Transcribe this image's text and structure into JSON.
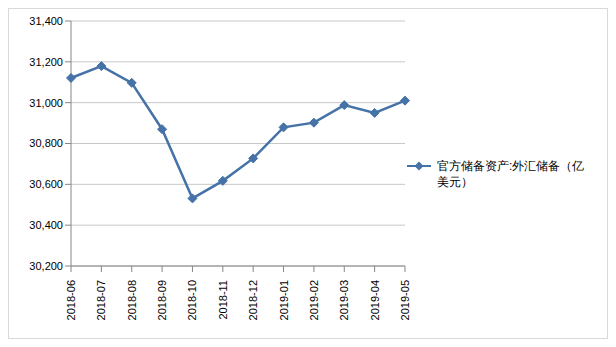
{
  "chart_data": {
    "type": "line",
    "categories": [
      "2018-06",
      "2018-07",
      "2018-08",
      "2018-09",
      "2018-10",
      "2018-11",
      "2018-12",
      "2019-01",
      "2019-02",
      "2019-03",
      "2019-04",
      "2019-05"
    ],
    "series": [
      {
        "name": "官方储备资产:外汇储备（亿美元）",
        "color": "#4572a7",
        "marker": "diamond",
        "values": [
          31121,
          31179,
          31097,
          30870,
          30531,
          30617,
          30727,
          30879,
          30902,
          30988,
          30950,
          31010
        ]
      }
    ],
    "ylim": [
      30200,
      31400
    ],
    "yticks": [
      {
        "value": 30200,
        "label": "30,200"
      },
      {
        "value": 30400,
        "label": "30,400"
      },
      {
        "value": 30600,
        "label": "30,600"
      },
      {
        "value": 30800,
        "label": "30,800"
      },
      {
        "value": 31000,
        "label": "31,000"
      },
      {
        "value": 31200,
        "label": "31,200"
      },
      {
        "value": 31400,
        "label": "31,400"
      }
    ],
    "grid": true,
    "legend": "right"
  }
}
